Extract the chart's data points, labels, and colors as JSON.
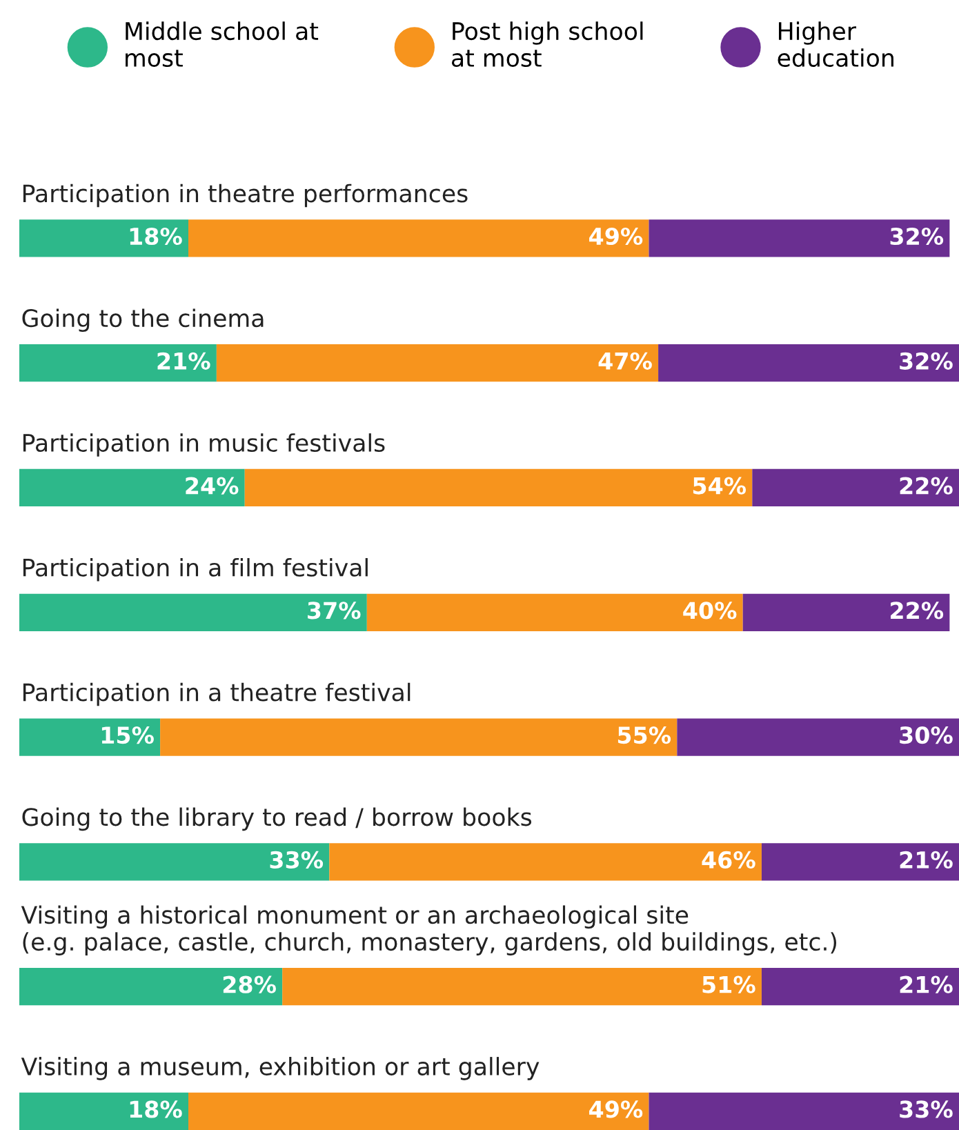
{
  "chart_data": {
    "type": "bar",
    "orientation": "horizontal",
    "stacked": true,
    "tick_labels": false,
    "legend": "top",
    "categories": [
      "Participation in theatre performances",
      "Going to the cinema",
      "Participation in music festivals",
      "Participation in a film festival",
      "Participation in a theatre festival",
      "Going to the library to read / borrow books",
      "Visiting a historical monument or an archaeological site\n(e.g. palace, castle, church, monastery, gardens, old buildings, etc.)",
      "Visiting a museum, exhibition or art gallery"
    ],
    "series": [
      {
        "name": "Middle school at\nmost",
        "color": "#2db88a",
        "values": [
          18,
          21,
          24,
          37,
          15,
          33,
          28,
          18
        ],
        "value_labels": [
          "18%",
          "21%",
          "24%",
          "37%",
          "15%",
          "33%",
          "28%",
          "18%"
        ]
      },
      {
        "name": "Post high school\nat most",
        "color": "#f7941d",
        "values": [
          49,
          47,
          54,
          40,
          55,
          46,
          51,
          49
        ],
        "value_labels": [
          "49%",
          "47%",
          "54%",
          "40%",
          "55%",
          "46%",
          "51%",
          "49%"
        ]
      },
      {
        "name": "Higher\neducation",
        "color": "#6a2f91",
        "values": [
          32,
          32,
          22,
          22,
          30,
          21,
          21,
          33
        ],
        "value_labels": [
          "32%",
          "32%",
          "22%",
          "22%",
          "30%",
          "21%",
          "21%",
          "33%"
        ]
      }
    ]
  }
}
